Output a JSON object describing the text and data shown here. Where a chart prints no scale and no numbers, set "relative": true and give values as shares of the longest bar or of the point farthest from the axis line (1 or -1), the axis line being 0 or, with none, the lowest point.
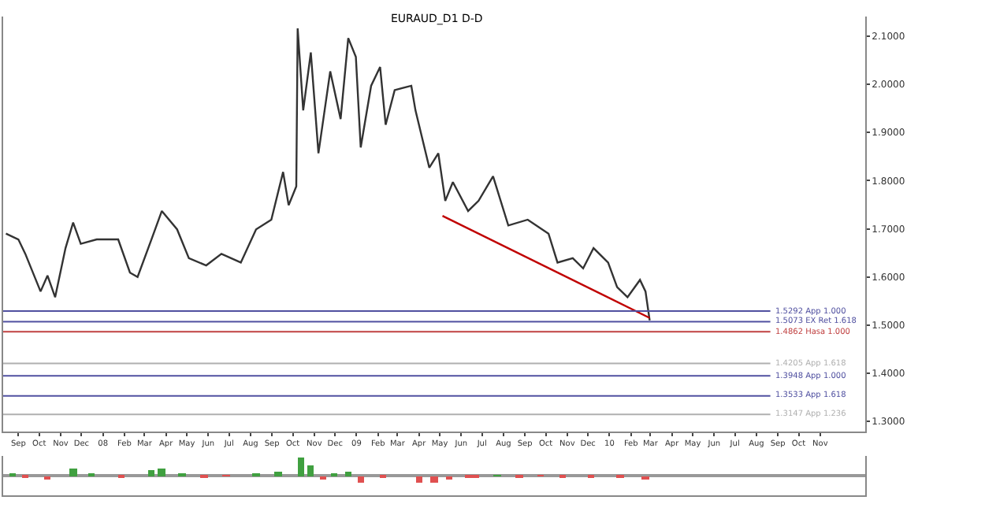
{
  "chart_data": [
    {
      "type": "line",
      "title": "EURAUD_D1 D-D",
      "series": [
        {
          "color": "#333333",
          "x": [
            "2007-08-14",
            "2007-09-01",
            "2007-09-11",
            "2007-10-03",
            "2007-10-13",
            "2007-10-24",
            "2007-11-08",
            "2007-11-19",
            "2007-11-30",
            "2007-12-23",
            "2008-01-23",
            "2008-02-09",
            "2008-02-20",
            "2008-03-11",
            "2008-03-26",
            "2008-04-17",
            "2008-05-04",
            "2008-05-29",
            "2008-06-20",
            "2008-07-18",
            "2008-08-09",
            "2008-08-31",
            "2008-09-17",
            "2008-09-25",
            "2008-10-06",
            "2008-10-08",
            "2008-10-16",
            "2008-10-27",
            "2008-11-07",
            "2008-11-24",
            "2008-12-09",
            "2008-12-20",
            "2008-12-31",
            "2009-01-07",
            "2009-01-22",
            "2009-02-04",
            "2009-02-12",
            "2009-02-25",
            "2009-03-21",
            "2009-03-27",
            "2009-04-16",
            "2009-04-29",
            "2009-05-09",
            "2009-05-20",
            "2009-06-11",
            "2009-06-26",
            "2009-07-17",
            "2009-08-08",
            "2009-09-05",
            "2009-10-05",
            "2009-10-18",
            "2009-11-09",
            "2009-11-24",
            "2009-12-09",
            "2009-12-30",
            "2010-01-12",
            "2010-01-27",
            "2010-02-14",
            "2010-02-22",
            "2010-02-28"
          ],
          "values": [
            1.69,
            1.678,
            1.648,
            1.57,
            1.603,
            1.558,
            1.66,
            1.713,
            1.669,
            1.678,
            1.678,
            1.609,
            1.6,
            1.678,
            1.737,
            1.699,
            1.639,
            1.624,
            1.648,
            1.63,
            1.699,
            1.719,
            1.818,
            1.749,
            1.788,
            2.116,
            1.946,
            2.066,
            1.857,
            2.027,
            1.928,
            2.096,
            2.057,
            1.869,
            1.997,
            2.036,
            1.916,
            1.988,
            1.997,
            1.946,
            1.827,
            1.857,
            1.758,
            1.797,
            1.737,
            1.758,
            1.809,
            1.707,
            1.719,
            1.69,
            1.63,
            1.639,
            1.618,
            1.66,
            1.63,
            1.579,
            1.558,
            1.594,
            1.57,
            1.51
          ]
        },
        {
          "type": "line",
          "color": "#c00000",
          "x": [
            "2009-05-05",
            "2010-02-28"
          ],
          "values": [
            1.727,
            1.515
          ]
        }
      ],
      "xlim": [
        "2007-08-10",
        "2011-01-05"
      ],
      "xticks": [
        {
          "value": "2007-09-01",
          "label": "Sep"
        },
        {
          "value": "2007-10-01",
          "label": "Oct"
        },
        {
          "value": "2007-11-01",
          "label": "Nov"
        },
        {
          "value": "2007-12-01",
          "label": "Dec"
        },
        {
          "value": "2008-01-01",
          "label": "08"
        },
        {
          "value": "2008-02-01",
          "label": "Feb"
        },
        {
          "value": "2008-03-01",
          "label": "Mar"
        },
        {
          "value": "2008-04-01",
          "label": "Apr"
        },
        {
          "value": "2008-05-01",
          "label": "May"
        },
        {
          "value": "2008-06-01",
          "label": "Jun"
        },
        {
          "value": "2008-07-01",
          "label": "Jul"
        },
        {
          "value": "2008-08-01",
          "label": "Aug"
        },
        {
          "value": "2008-09-01",
          "label": "Sep"
        },
        {
          "value": "2008-10-01",
          "label": "Oct"
        },
        {
          "value": "2008-11-01",
          "label": "Nov"
        },
        {
          "value": "2008-12-01",
          "label": "Dec"
        },
        {
          "value": "2009-01-01",
          "label": "09"
        },
        {
          "value": "2009-02-01",
          "label": "Feb"
        },
        {
          "value": "2009-03-01",
          "label": "Mar"
        },
        {
          "value": "2009-04-01",
          "label": "Apr"
        },
        {
          "value": "2009-05-01",
          "label": "May"
        },
        {
          "value": "2009-06-01",
          "label": "Jun"
        },
        {
          "value": "2009-07-01",
          "label": "Jul"
        },
        {
          "value": "2009-08-01",
          "label": "Aug"
        },
        {
          "value": "2009-09-01",
          "label": "Sep"
        },
        {
          "value": "2009-10-01",
          "label": "Oct"
        },
        {
          "value": "2009-11-01",
          "label": "Nov"
        },
        {
          "value": "2009-12-01",
          "label": "Dec"
        },
        {
          "value": "2010-01-01",
          "label": "10"
        },
        {
          "value": "2010-02-01",
          "label": "Feb"
        },
        {
          "value": "2010-03-01",
          "label": "Mar"
        },
        {
          "value": "2010-04-01",
          "label": "Apr"
        },
        {
          "value": "2010-05-01",
          "label": "May"
        },
        {
          "value": "2010-06-01",
          "label": "Jun"
        },
        {
          "value": "2010-07-01",
          "label": "Jul"
        },
        {
          "value": "2010-08-01",
          "label": "Aug"
        },
        {
          "value": "2010-09-01",
          "label": "Sep"
        },
        {
          "value": "2010-10-01",
          "label": "Oct"
        },
        {
          "value": "2010-11-01",
          "label": "Nov"
        }
      ],
      "ylim": [
        1.28,
        2.14
      ],
      "yticks": [
        {
          "value": 1.3,
          "label": "1.3000"
        },
        {
          "value": 1.4,
          "label": "1.4000"
        },
        {
          "value": 1.5,
          "label": "1.5000"
        },
        {
          "value": 1.6,
          "label": "1.6000"
        },
        {
          "value": 1.7,
          "label": "1.7000"
        },
        {
          "value": 1.8,
          "label": "1.8000"
        },
        {
          "value": 1.9,
          "label": "1.9000"
        },
        {
          "value": 2.0,
          "label": "2.0000"
        },
        {
          "value": 2.1,
          "label": "2.1000"
        }
      ],
      "ref_lines": [
        {
          "axis": "y",
          "value": 1.5292,
          "label": "1.5292 App 1.000",
          "color": "#5050a0"
        },
        {
          "axis": "y",
          "value": 1.5073,
          "label": "1.5073 EX Ret 1.618",
          "color": "#5050a0"
        },
        {
          "axis": "y",
          "value": 1.4862,
          "label": "1.4862 Hasa 1.000",
          "color": "#c04040"
        },
        {
          "axis": "y",
          "value": 1.4205,
          "label": "1.4205 App 1.618",
          "color": "#b0b0b0"
        },
        {
          "axis": "y",
          "value": 1.3948,
          "label": "1.3948 App 1.000",
          "color": "#5050a0"
        },
        {
          "axis": "y",
          "value": 1.3533,
          "label": "1.3533 App 1.618",
          "color": "#5050a0"
        },
        {
          "axis": "y",
          "value": 1.3147,
          "label": "1.3147 App 1.236",
          "color": "#b0b0b0"
        }
      ],
      "marker": "none",
      "line_style": "solid"
    },
    {
      "type": "bar",
      "relative": true,
      "tick_labels": false,
      "x": [
        "2007-08-23",
        "2007-09-11",
        "2007-10-13",
        "2007-11-19",
        "2007-12-15",
        "2008-01-27",
        "2008-03-11",
        "2008-03-26",
        "2008-04-24",
        "2008-05-26",
        "2008-06-27",
        "2008-08-09",
        "2008-09-10",
        "2008-10-13",
        "2008-10-27",
        "2008-11-14",
        "2008-11-29",
        "2008-12-20",
        "2009-01-07",
        "2009-02-08",
        "2009-04-01",
        "2009-04-23",
        "2009-05-14",
        "2009-06-11",
        "2009-06-21",
        "2009-07-23",
        "2009-08-24",
        "2009-09-24",
        "2009-10-25",
        "2009-12-05",
        "2010-01-16",
        "2010-02-22"
      ],
      "colors": [
        "#40a040",
        "#e05050",
        "#e05050",
        "#40a040",
        "#40a040",
        "#e05050",
        "#40a040",
        "#40a040",
        "#40a040",
        "#e05050",
        "#e05050",
        "#40a040",
        "#40a040",
        "#40a040",
        "#40a040",
        "#e05050",
        "#40a040",
        "#40a040",
        "#e05050",
        "#e05050",
        "#e05050",
        "#e05050",
        "#e05050",
        "#e05050",
        "#e05050",
        "#40a040",
        "#e05050",
        "#e05050",
        "#e05050",
        "#e05050",
        "#e05050",
        "#e05050"
      ],
      "values": [
        0.15,
        -0.1,
        -0.2,
        0.35,
        0.1,
        -0.15,
        0.3,
        0.35,
        0.1,
        -0.15,
        -0.02,
        0.15,
        0.2,
        1.0,
        0.55,
        -0.2,
        0.15,
        0.25,
        -0.4,
        -0.05,
        -0.35,
        -0.4,
        -0.2,
        -0.1,
        -0.15,
        0.05,
        -0.05,
        -0.02,
        -0.05,
        -0.1,
        -0.1,
        -0.2
      ],
      "xlim": [
        "2007-08-10",
        "2011-01-05"
      ]
    }
  ]
}
